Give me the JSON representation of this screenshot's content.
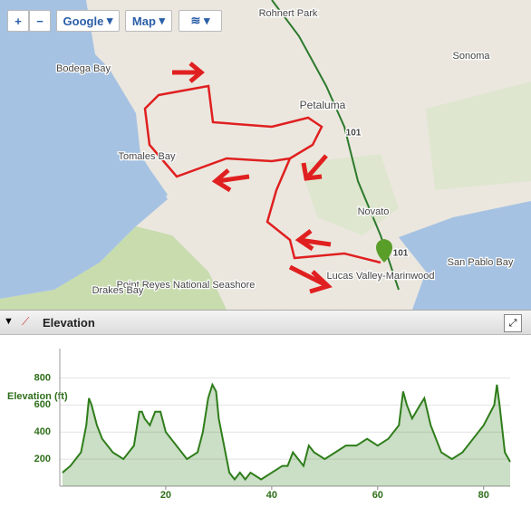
{
  "map": {
    "controls": {
      "zoom_in": "+",
      "zoom_out": "−",
      "provider": "Google",
      "map_type": "Map"
    },
    "labels": [
      "Bodega Bay",
      "Rohnert Park",
      "Sonoma",
      "Petaluma",
      "101",
      "Tomales Bay",
      "Novato",
      "101",
      "San Pablo Bay",
      "Lucas Valley-Marinwood",
      "Point Reyes National Seashore",
      "Drakes Bay"
    ]
  },
  "panel": {
    "title": "Elevation"
  },
  "chart_data": {
    "type": "line",
    "y_label": "Elevation (ft)",
    "x": [
      0.5,
      2,
      4,
      5,
      5.5,
      6,
      7,
      8,
      10,
      12,
      14,
      15,
      15.5,
      16,
      17,
      18,
      19,
      20,
      22,
      24,
      26,
      27,
      28,
      28.8,
      29.5,
      30,
      31,
      32,
      33,
      34,
      35,
      36,
      38,
      40,
      42,
      43,
      44,
      45,
      46,
      47,
      48,
      50,
      52,
      54,
      56,
      58,
      60,
      62,
      64,
      64.8,
      65.5,
      66.5,
      68,
      68.8,
      70,
      72,
      74,
      76,
      78,
      80,
      82,
      82.5,
      83,
      84,
      85
    ],
    "series": [
      {
        "color": "#2e7d1a",
        "values": [
          100,
          150,
          250,
          450,
          650,
          600,
          450,
          350,
          250,
          200,
          300,
          550,
          550,
          500,
          450,
          550,
          550,
          400,
          300,
          200,
          250,
          400,
          650,
          750,
          700,
          500,
          300,
          100,
          50,
          100,
          50,
          100,
          50,
          100,
          150,
          150,
          250,
          200,
          150,
          300,
          250,
          200,
          250,
          300,
          300,
          350,
          300,
          350,
          450,
          700,
          600,
          500,
          600,
          650,
          450,
          250,
          200,
          250,
          350,
          450,
          600,
          750,
          600,
          250,
          180
        ]
      }
    ],
    "xlim": [
      0,
      85
    ],
    "xticks": [
      20,
      40,
      60,
      80
    ],
    "ylim": [
      0,
      950
    ],
    "yticks": [
      200,
      400,
      600,
      800
    ],
    "grid": true
  }
}
